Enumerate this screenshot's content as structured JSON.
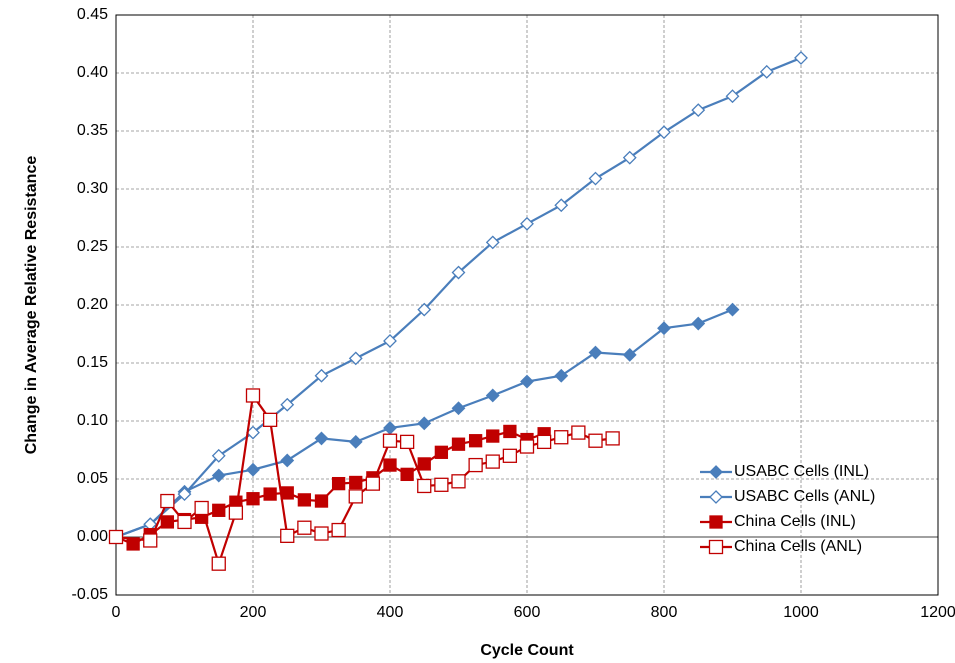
{
  "chart_data": {
    "type": "line",
    "xlabel": "Cycle Count",
    "ylabel": "Change in Average Relative Resistance",
    "xlim": [
      0,
      1200
    ],
    "xticks": [
      0,
      200,
      400,
      600,
      800,
      1000,
      1200
    ],
    "ylim": [
      -0.05,
      0.45
    ],
    "yticks": [
      -0.05,
      {
        "value": 0,
        "label": "0.00"
      },
      0.05,
      {
        "value": 0.1,
        "label": "0.10"
      },
      0.15,
      {
        "value": 0.2,
        "label": "0.20"
      },
      0.25,
      {
        "value": 0.3,
        "label": "0.30"
      },
      0.35,
      {
        "value": 0.4,
        "label": "0.40"
      },
      0.45
    ],
    "grid": true,
    "legend": "lower right",
    "series": [
      {
        "name": "USABC Cells (INL)",
        "color": "#4a7ebb",
        "marker": "filled-diamond",
        "x": [
          0,
          50,
          100,
          150,
          200,
          250,
          300,
          350,
          400,
          450,
          500,
          550,
          600,
          650,
          700,
          750,
          800,
          850,
          900
        ],
        "values": [
          0,
          0.011,
          0.039,
          0.053,
          0.058,
          0.066,
          0.085,
          0.082,
          0.094,
          0.098,
          0.111,
          0.122,
          0.134,
          0.139,
          0.159,
          0.157,
          0.18,
          0.184,
          0.196
        ]
      },
      {
        "name": "USABC Cells (ANL)",
        "color": "#4a7ebb",
        "marker": "open-diamond",
        "x": [
          0,
          50,
          100,
          150,
          200,
          250,
          300,
          350,
          400,
          450,
          500,
          550,
          600,
          650,
          700,
          750,
          800,
          850,
          900,
          950,
          1000
        ],
        "values": [
          0,
          0.011,
          0.037,
          0.07,
          0.09,
          0.114,
          0.139,
          0.154,
          0.169,
          0.196,
          0.228,
          0.254,
          0.27,
          0.286,
          0.309,
          0.327,
          0.349,
          0.368,
          0.38,
          0.401,
          0.413
        ]
      },
      {
        "name": "China Cells (INL)",
        "color": "#c00000",
        "marker": "filled-square",
        "x": [
          0,
          25,
          50,
          75,
          100,
          125,
          150,
          175,
          200,
          225,
          250,
          275,
          300,
          325,
          350,
          375,
          400,
          425,
          450,
          475,
          500,
          525,
          550,
          575,
          600,
          625
        ],
        "values": [
          0,
          -0.006,
          0.002,
          0.013,
          0.015,
          0.017,
          0.023,
          0.03,
          0.033,
          0.037,
          0.038,
          0.032,
          0.031,
          0.046,
          0.047,
          0.051,
          0.062,
          0.054,
          0.063,
          0.073,
          0.08,
          0.083,
          0.087,
          0.091,
          0.084,
          0.089
        ]
      },
      {
        "name": "China Cells (ANL)",
        "color": "#c00000",
        "marker": "open-square",
        "x": [
          0,
          50,
          75,
          100,
          125,
          150,
          175,
          200,
          225,
          250,
          275,
          300,
          325,
          350,
          375,
          400,
          425,
          450,
          475,
          500,
          525,
          550,
          575,
          600,
          625,
          650,
          675,
          700,
          725
        ],
        "values": [
          0,
          -0.003,
          0.031,
          0.013,
          0.025,
          -0.023,
          0.021,
          0.122,
          0.101,
          0.001,
          0.008,
          0.003,
          0.006,
          0.035,
          0.046,
          0.083,
          0.082,
          0.044,
          0.045,
          0.048,
          0.062,
          0.065,
          0.07,
          0.078,
          0.082,
          0.086,
          0.09,
          0.083,
          0.085
        ]
      }
    ]
  }
}
